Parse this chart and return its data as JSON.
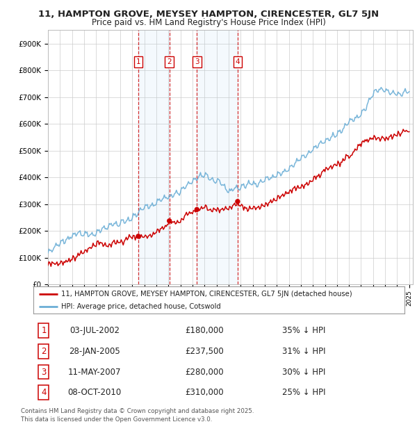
{
  "title_line1": "11, HAMPTON GROVE, MEYSEY HAMPTON, CIRENCESTER, GL7 5JN",
  "title_line2": "Price paid vs. HM Land Registry's House Price Index (HPI)",
  "background_color": "#ffffff",
  "plot_bg_color": "#ffffff",
  "grid_color": "#cccccc",
  "hpi_color": "#6baed6",
  "price_color": "#cc0000",
  "transactions": [
    {
      "num": 1,
      "date": "03-JUL-2002",
      "price": 180000,
      "pct": "35%",
      "year": 2002.5
    },
    {
      "num": 2,
      "date": "28-JAN-2005",
      "price": 237500,
      "pct": "31%",
      "year": 2005.083
    },
    {
      "num": 3,
      "date": "11-MAY-2007",
      "price": 280000,
      "pct": "30%",
      "year": 2007.367
    },
    {
      "num": 4,
      "date": "08-OCT-2010",
      "price": 310000,
      "pct": "25%",
      "year": 2010.75
    }
  ],
  "legend_label_red": "11, HAMPTON GROVE, MEYSEY HAMPTON, CIRENCESTER, GL7 5JN (detached house)",
  "legend_label_blue": "HPI: Average price, detached house, Cotswold",
  "footer_line1": "Contains HM Land Registry data © Crown copyright and database right 2025.",
  "footer_line2": "This data is licensed under the Open Government Licence v3.0.",
  "ylim_max": 950000,
  "x_start_year": 1995,
  "x_end_year": 2025
}
